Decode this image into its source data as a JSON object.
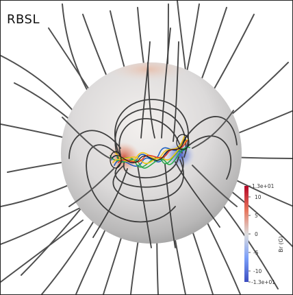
{
  "view": {
    "label": "RBSL"
  },
  "colorbar": {
    "title": "Br (G)",
    "ticks": [
      "1.3e+01",
      "10",
      "5",
      "0",
      "-5",
      "-10",
      "-1.3e+01"
    ],
    "min": -13,
    "max": 13,
    "colors": {
      "positive": "#b40426",
      "neutral": "#dddddd",
      "negative": "#3b4cc0"
    }
  },
  "rendering": {
    "sphere_color": "#d9d9d9",
    "field_line_color": "#4a4a4a",
    "rope_colors": [
      "#1f5fbf",
      "#2aa84a",
      "#f0c419",
      "#e53b1e",
      "#1a1a1a"
    ]
  }
}
